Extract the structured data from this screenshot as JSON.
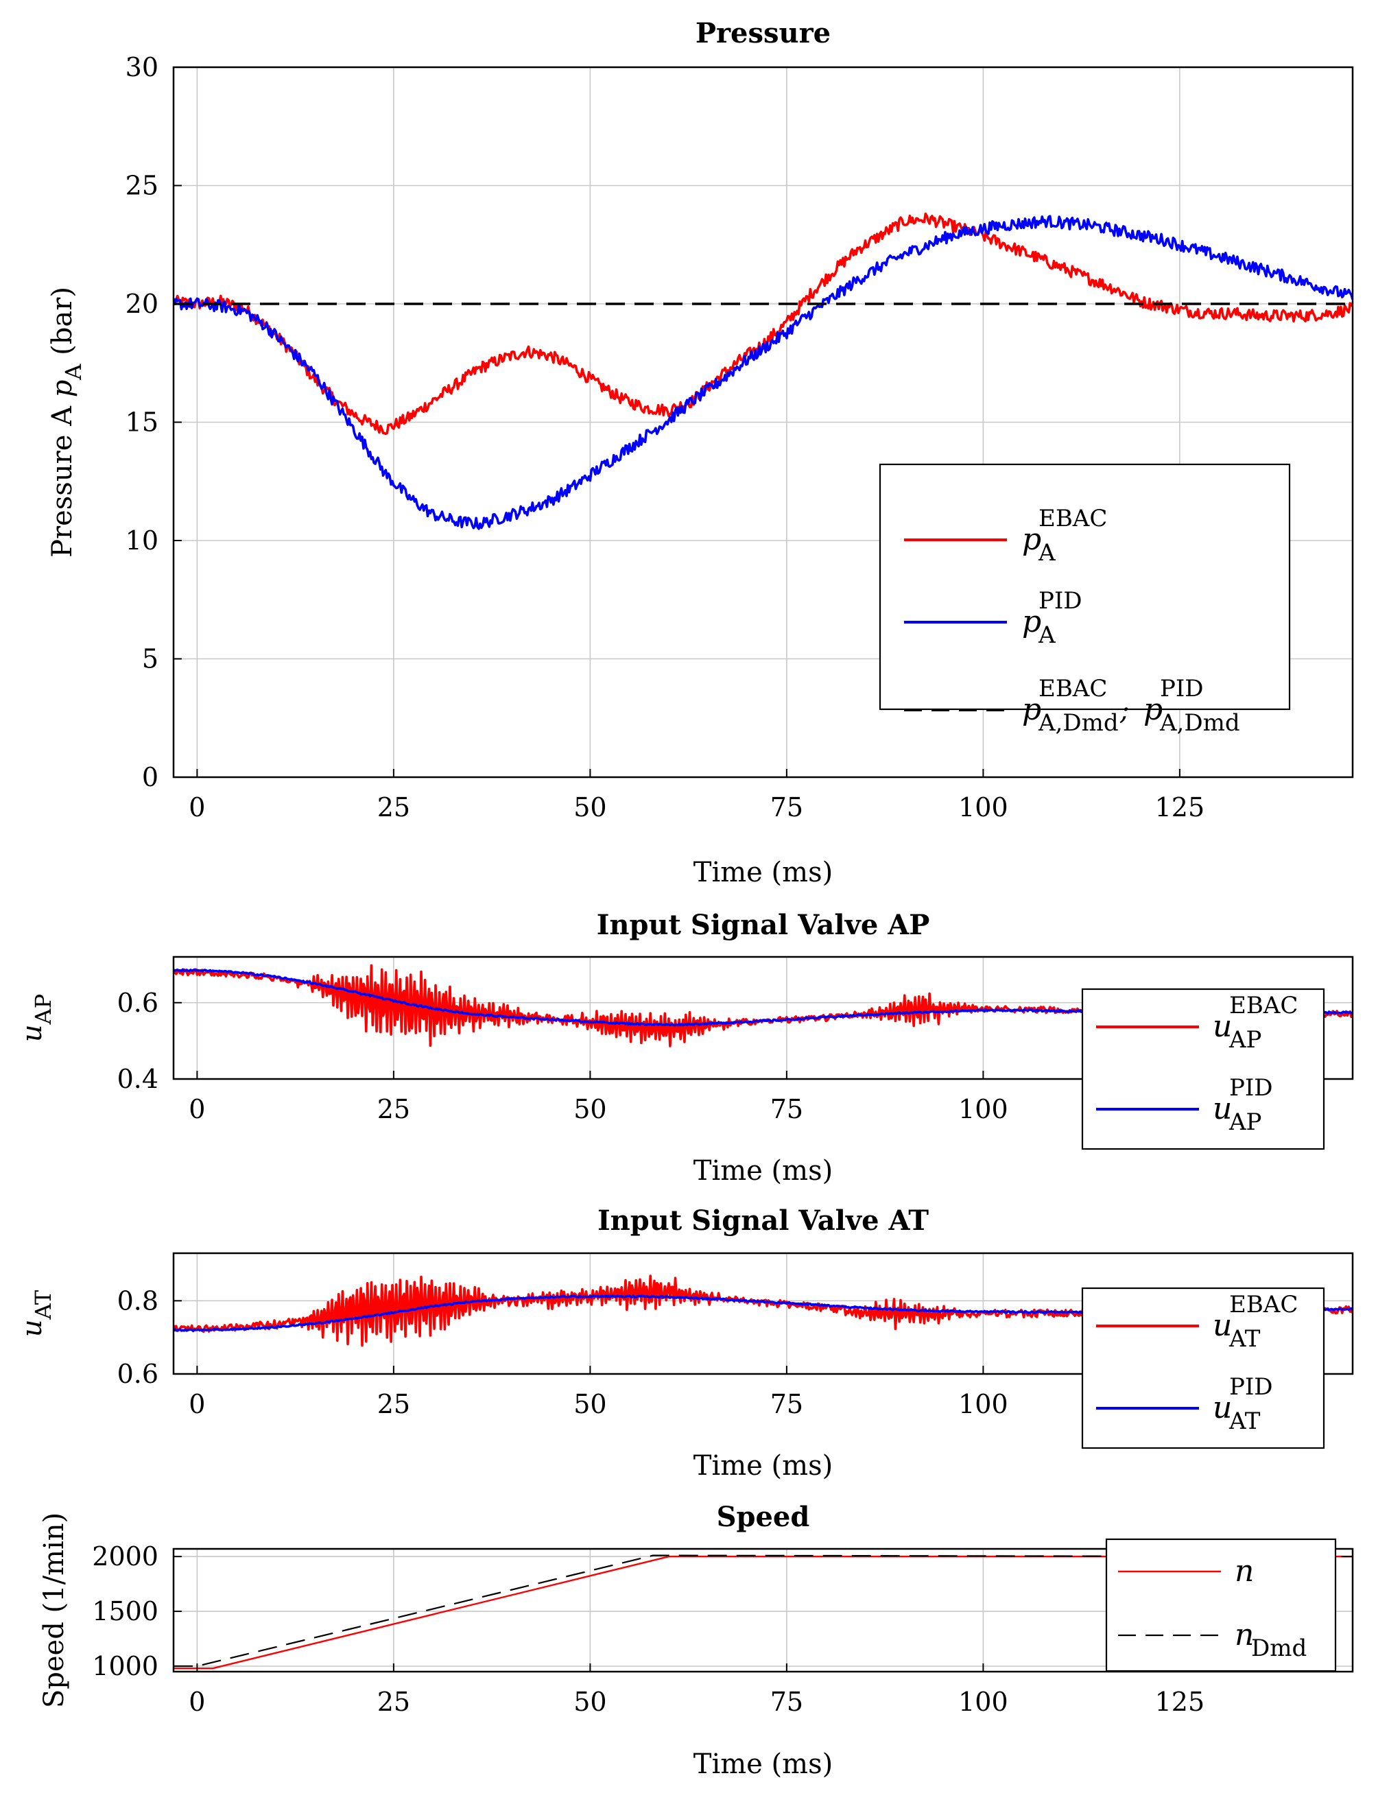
{
  "chart_data": [
    {
      "id": "pressure",
      "type": "line",
      "title": "Pressure",
      "xlabel": "Time  (ms)",
      "ylabel": "Pressure A  pA  (bar)",
      "ylabel_parts": {
        "text": "Pressure A  ",
        "var": "p",
        "sub": "A",
        "unit": "  (bar)"
      },
      "xlim": [
        -3,
        147
      ],
      "ylim": [
        0,
        30
      ],
      "xticks": [
        0,
        25,
        50,
        75,
        100,
        125
      ],
      "yticks": [
        0,
        5,
        10,
        15,
        20,
        25,
        30
      ],
      "grid": true,
      "legend_position": "center-right",
      "series": [
        {
          "name": "pA EBAC",
          "var": "p",
          "sup": "EBAC",
          "sub": "A",
          "color": "#ff0000",
          "style": "solid",
          "noise": 0.25,
          "x": [
            -3,
            0,
            3,
            6,
            9,
            12,
            15,
            18,
            21,
            24,
            27,
            30,
            33,
            36,
            39,
            42,
            45,
            48,
            51,
            54,
            57,
            60,
            63,
            66,
            69,
            72,
            75,
            78,
            81,
            84,
            87,
            90,
            93,
            96,
            99,
            102,
            105,
            108,
            111,
            114,
            117,
            120,
            123,
            126,
            129,
            132,
            135,
            138,
            141,
            144,
            147
          ],
          "values": [
            20.1,
            20.0,
            20.1,
            19.8,
            19.0,
            18.0,
            16.8,
            15.8,
            15.1,
            14.7,
            15.2,
            15.9,
            16.6,
            17.3,
            17.7,
            18.0,
            17.8,
            17.3,
            16.6,
            16.0,
            15.6,
            15.5,
            15.9,
            16.8,
            17.6,
            18.3,
            19.2,
            20.4,
            21.4,
            22.3,
            22.9,
            23.5,
            23.6,
            23.3,
            23.0,
            22.6,
            22.2,
            21.8,
            21.4,
            21.0,
            20.6,
            20.1,
            19.9,
            19.7,
            19.6,
            19.6,
            19.5,
            19.5,
            19.5,
            19.6,
            19.8
          ]
        },
        {
          "name": "pA PID",
          "var": "p",
          "sup": "PID",
          "sub": "A",
          "color": "#0000ff",
          "style": "solid",
          "noise": 0.25,
          "x": [
            -3,
            0,
            3,
            6,
            9,
            12,
            15,
            18,
            21,
            24,
            27,
            30,
            33,
            36,
            39,
            42,
            45,
            48,
            51,
            54,
            57,
            60,
            63,
            66,
            69,
            72,
            75,
            78,
            81,
            84,
            87,
            90,
            93,
            96,
            99,
            102,
            105,
            108,
            111,
            114,
            117,
            120,
            123,
            126,
            129,
            132,
            135,
            138,
            141,
            144,
            147
          ],
          "values": [
            20.0,
            20.0,
            19.9,
            19.7,
            19.0,
            18.0,
            17.0,
            15.6,
            14.2,
            12.8,
            11.8,
            11.1,
            10.8,
            10.7,
            11.0,
            11.3,
            11.7,
            12.3,
            13.0,
            13.7,
            14.4,
            15.1,
            15.9,
            16.6,
            17.4,
            18.1,
            18.8,
            19.6,
            20.3,
            21.0,
            21.6,
            22.1,
            22.5,
            22.9,
            23.1,
            23.3,
            23.4,
            23.5,
            23.4,
            23.3,
            23.1,
            22.9,
            22.7,
            22.4,
            22.1,
            21.8,
            21.5,
            21.2,
            20.9,
            20.6,
            20.3
          ]
        },
        {
          "name": "pA,Dmd EBAC ; pA,Dmd PID",
          "var": "p",
          "sup": "EBAC",
          "sub": "A,Dmd",
          "sep": ";",
          "sup2": "PID",
          "sub2": "A,Dmd",
          "color": "#000000",
          "style": "dashed",
          "noise": 0,
          "x": [
            -3,
            147
          ],
          "values": [
            20,
            20
          ]
        }
      ]
    },
    {
      "id": "valve-ap",
      "type": "line",
      "title": "Input Signal Valve AP",
      "xlabel": "Time  (ms)",
      "ylabel": "uAP",
      "ylabel_parts": {
        "text": "",
        "var": "u",
        "sub": "AP",
        "unit": ""
      },
      "xlim": [
        -3,
        147
      ],
      "ylim": [
        0.4,
        0.72
      ],
      "xticks": [
        0,
        25,
        50,
        75,
        100
      ],
      "yticks": [
        0.4,
        0.6
      ],
      "ytick_labels": [
        "0.4",
        "0.6"
      ],
      "grid": true,
      "legend_position": "right",
      "series": [
        {
          "name": "uAP EBAC",
          "var": "u",
          "sup": "EBAC",
          "sub": "AP",
          "color": "#ff0000",
          "style": "solid",
          "noise": 0.008,
          "bursts": [
            {
              "c": 22,
              "w": 6,
              "a": 0.07
            },
            {
              "c": 30,
              "w": 6,
              "a": 0.07
            },
            {
              "c": 40,
              "w": 4,
              "a": 0.02
            },
            {
              "c": 55,
              "w": 6,
              "a": 0.035
            },
            {
              "c": 62,
              "w": 4,
              "a": 0.03
            },
            {
              "c": 92,
              "w": 5,
              "a": 0.035
            }
          ],
          "x": [
            -3,
            0,
            5,
            10,
            15,
            20,
            25,
            30,
            35,
            40,
            45,
            50,
            55,
            60,
            65,
            70,
            75,
            80,
            85,
            90,
            95,
            100,
            105,
            110,
            115,
            120,
            125,
            130,
            135,
            140,
            147
          ],
          "values": [
            0.68,
            0.68,
            0.675,
            0.665,
            0.645,
            0.62,
            0.6,
            0.585,
            0.57,
            0.565,
            0.558,
            0.55,
            0.54,
            0.532,
            0.54,
            0.55,
            0.555,
            0.56,
            0.57,
            0.58,
            0.585,
            0.585,
            0.582,
            0.58,
            0.578,
            0.575,
            0.573,
            0.572,
            0.572,
            0.571,
            0.57
          ]
        },
        {
          "name": "uAP PID",
          "var": "u",
          "sup": "PID",
          "sub": "AP",
          "color": "#0000ff",
          "style": "solid",
          "noise": 0.002,
          "x": [
            -3,
            0,
            5,
            10,
            15,
            20,
            25,
            30,
            35,
            40,
            45,
            50,
            55,
            60,
            65,
            70,
            75,
            80,
            85,
            90,
            95,
            100,
            105,
            110,
            115,
            120,
            125,
            130,
            135,
            140,
            147
          ],
          "values": [
            0.685,
            0.685,
            0.68,
            0.668,
            0.65,
            0.628,
            0.605,
            0.585,
            0.57,
            0.562,
            0.556,
            0.55,
            0.545,
            0.542,
            0.545,
            0.55,
            0.555,
            0.562,
            0.568,
            0.573,
            0.577,
            0.58,
            0.58,
            0.578,
            0.577,
            0.576,
            0.575,
            0.575,
            0.574,
            0.574,
            0.574
          ]
        }
      ]
    },
    {
      "id": "valve-at",
      "type": "line",
      "title": "Input Signal Valve AT",
      "xlabel": "Time  (ms)",
      "ylabel": "uAT",
      "ylabel_parts": {
        "text": "",
        "var": "u",
        "sub": "AT",
        "unit": ""
      },
      "xlim": [
        -3,
        147
      ],
      "ylim": [
        0.6,
        0.93
      ],
      "xticks": [
        0,
        25,
        50,
        75,
        100
      ],
      "yticks": [
        0.6,
        0.8
      ],
      "ytick_labels": [
        "0.6",
        "0.8"
      ],
      "grid": true,
      "legend_position": "right",
      "series": [
        {
          "name": "uAT EBAC",
          "var": "u",
          "sup": "EBAC",
          "sub": "AT",
          "color": "#ff0000",
          "style": "solid",
          "noise": 0.01,
          "bursts": [
            {
              "c": 21,
              "w": 6,
              "a": 0.08
            },
            {
              "c": 30,
              "w": 6,
              "a": 0.07
            },
            {
              "c": 45,
              "w": 4,
              "a": 0.02
            },
            {
              "c": 57,
              "w": 7,
              "a": 0.04
            },
            {
              "c": 90,
              "w": 5,
              "a": 0.035
            }
          ],
          "x": [
            -3,
            0,
            5,
            10,
            15,
            20,
            25,
            30,
            35,
            40,
            45,
            50,
            55,
            60,
            65,
            70,
            75,
            80,
            85,
            90,
            95,
            100,
            105,
            110,
            115,
            120,
            125,
            130,
            135,
            140,
            147
          ],
          "values": [
            0.725,
            0.725,
            0.728,
            0.735,
            0.75,
            0.77,
            0.785,
            0.79,
            0.795,
            0.8,
            0.805,
            0.812,
            0.82,
            0.825,
            0.81,
            0.8,
            0.79,
            0.78,
            0.77,
            0.765,
            0.765,
            0.765,
            0.765,
            0.766,
            0.767,
            0.768,
            0.77,
            0.772,
            0.775,
            0.775,
            0.775
          ]
        },
        {
          "name": "uAT PID",
          "var": "u",
          "sup": "PID",
          "sub": "AT",
          "color": "#0000ff",
          "style": "solid",
          "noise": 0.002,
          "x": [
            -3,
            0,
            5,
            10,
            15,
            20,
            25,
            30,
            35,
            40,
            45,
            50,
            55,
            60,
            65,
            70,
            75,
            80,
            85,
            90,
            95,
            100,
            105,
            110,
            115,
            120,
            125,
            130,
            135,
            140,
            147
          ],
          "values": [
            0.72,
            0.72,
            0.722,
            0.728,
            0.738,
            0.752,
            0.768,
            0.785,
            0.798,
            0.806,
            0.81,
            0.812,
            0.812,
            0.81,
            0.806,
            0.8,
            0.794,
            0.787,
            0.78,
            0.775,
            0.772,
            0.77,
            0.769,
            0.769,
            0.77,
            0.771,
            0.772,
            0.774,
            0.775,
            0.776,
            0.777
          ]
        }
      ]
    },
    {
      "id": "speed",
      "type": "line",
      "title": "Speed",
      "xlabel": "Time  (ms)",
      "ylabel": "Speed  (1/min)",
      "ylabel_parts": {
        "text": "Speed  (1/min)",
        "var": "",
        "sub": "",
        "unit": ""
      },
      "xlim": [
        -3,
        147
      ],
      "ylim": [
        950,
        2070
      ],
      "xticks": [
        0,
        25,
        50,
        75,
        100,
        125
      ],
      "yticks": [
        1000,
        1500,
        2000
      ],
      "ytick_labels": [
        "1000",
        "1500",
        "2000"
      ],
      "grid": true,
      "legend_position": "top-right",
      "series": [
        {
          "name": "n",
          "var": "n",
          "sup": "",
          "sub": "",
          "color": "#ff0000",
          "style": "solid",
          "width": 2.4,
          "noise": 0,
          "x": [
            -3,
            2,
            60,
            147
          ],
          "values": [
            980,
            980,
            2000,
            2000
          ]
        },
        {
          "name": "nDmd",
          "var": "n",
          "sup": "",
          "sub": "Dmd",
          "color": "#000000",
          "style": "dashed",
          "width": 2.2,
          "noise": 0,
          "x": [
            -3,
            0,
            58,
            147
          ],
          "values": [
            1000,
            1000,
            2010,
            2000
          ]
        }
      ]
    }
  ]
}
